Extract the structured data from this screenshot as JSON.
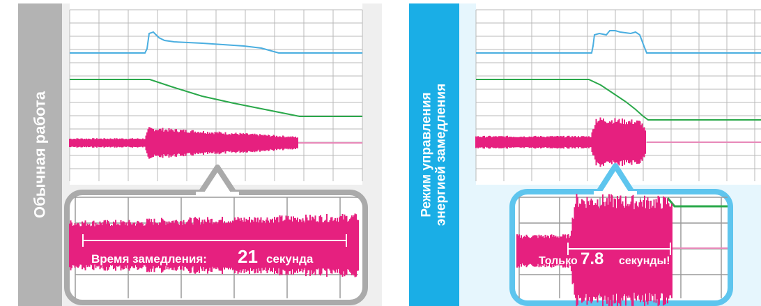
{
  "left_panel": {
    "label": "Обычная работа",
    "caption_prefix": "Время замедления:",
    "caption_value": "21",
    "caption_suffix": "секунда"
  },
  "right_panel": {
    "label_line1": "Режим управления",
    "label_line2": "энергией замедления",
    "caption_prefix": "Только",
    "caption_value": "7.8",
    "caption_suffix": "секунды!"
  },
  "colors": {
    "current_line": "#4aaee0",
    "speed_line": "#2aa84a",
    "waveform": "#e6207f",
    "left_label_bg": "#b3b3b3",
    "right_label_bg": "#1aaee6",
    "left_callout_border": "#aaaaaa",
    "right_callout_border": "#5ec5ee"
  }
}
